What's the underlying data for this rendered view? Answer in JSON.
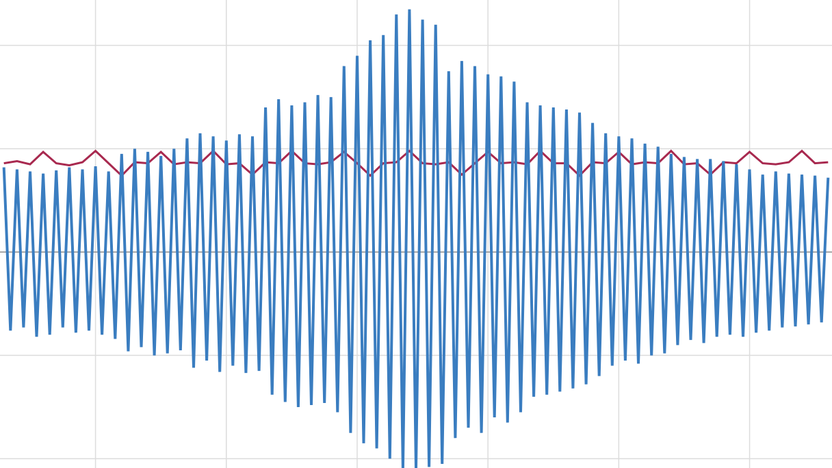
{
  "chart_data": {
    "type": "line",
    "grid": true,
    "xlim": [
      0.27,
      6.63
    ],
    "xticks": [
      1,
      2,
      3,
      4,
      5,
      6
    ],
    "ylim": [
      -2.09,
      2.44
    ],
    "yticks": [
      -2,
      -1,
      0,
      1,
      2
    ],
    "series": [
      {
        "color": "#a8294f",
        "x": [
          0.3,
          0.4,
          0.5,
          0.6,
          0.7,
          0.8,
          0.9,
          1.0,
          1.1,
          1.2,
          1.3,
          1.4,
          1.5,
          1.6,
          1.7,
          1.8,
          1.9,
          2.0,
          2.1,
          2.2,
          2.3,
          2.4,
          2.5,
          2.6,
          2.7,
          2.8,
          2.9,
          3.0,
          3.1,
          3.2,
          3.3,
          3.4,
          3.5,
          3.6,
          3.7,
          3.8,
          3.9,
          4.0,
          4.1,
          4.2,
          4.3,
          4.4,
          4.5,
          4.6,
          4.7,
          4.8,
          4.9,
          5.0,
          5.1,
          5.2,
          5.3,
          5.4,
          5.5,
          5.6,
          5.7,
          5.8,
          5.9,
          6.0,
          6.1,
          6.2,
          6.3,
          6.4,
          6.5,
          6.6
        ],
        "values": [
          0.86,
          0.88,
          0.85,
          0.97,
          0.86,
          0.84,
          0.87,
          0.98,
          0.86,
          0.74,
          0.87,
          0.86,
          0.97,
          0.85,
          0.87,
          0.86,
          0.98,
          0.85,
          0.86,
          0.75,
          0.87,
          0.86,
          0.98,
          0.86,
          0.85,
          0.87,
          0.97,
          0.86,
          0.74,
          0.86,
          0.87,
          0.98,
          0.86,
          0.85,
          0.87,
          0.75,
          0.86,
          0.97,
          0.86,
          0.87,
          0.85,
          0.98,
          0.86,
          0.86,
          0.74,
          0.87,
          0.86,
          0.97,
          0.85,
          0.87,
          0.86,
          0.98,
          0.85,
          0.86,
          0.75,
          0.87,
          0.86,
          0.97,
          0.86,
          0.85,
          0.87,
          0.98,
          0.86,
          0.87
        ]
      },
      {
        "color": "#3a7dc0",
        "x": [
          0.3,
          0.35,
          0.4,
          0.45,
          0.5,
          0.55,
          0.6,
          0.65,
          0.7,
          0.75,
          0.8,
          0.85,
          0.9,
          0.95,
          1.0,
          1.05,
          1.1,
          1.15,
          1.2,
          1.25,
          1.3,
          1.35,
          1.4,
          1.45,
          1.5,
          1.55,
          1.6,
          1.65,
          1.7,
          1.75,
          1.8,
          1.85,
          1.9,
          1.95,
          2.0,
          2.05,
          2.1,
          2.15,
          2.2,
          2.25,
          2.3,
          2.35,
          2.4,
          2.45,
          2.5,
          2.55,
          2.6,
          2.65,
          2.7,
          2.75,
          2.8,
          2.85,
          2.9,
          2.95,
          3.0,
          3.05,
          3.1,
          3.15,
          3.2,
          3.25,
          3.3,
          3.35,
          3.4,
          3.45,
          3.5,
          3.55,
          3.6,
          3.65,
          3.7,
          3.75,
          3.8,
          3.85,
          3.9,
          3.95,
          4.0,
          4.05,
          4.1,
          4.15,
          4.2,
          4.25,
          4.3,
          4.35,
          4.4,
          4.45,
          4.5,
          4.55,
          4.6,
          4.65,
          4.7,
          4.75,
          4.8,
          4.85,
          4.9,
          4.95,
          5.0,
          5.05,
          5.1,
          5.15,
          5.2,
          5.25,
          5.3,
          5.35,
          5.4,
          5.45,
          5.5,
          5.55,
          5.6,
          5.65,
          5.7,
          5.75,
          5.8,
          5.85,
          5.9,
          5.95,
          6.0,
          6.05,
          6.1,
          6.15,
          6.2,
          6.25,
          6.3,
          6.35,
          6.4,
          6.45,
          6.5,
          6.55,
          6.6
        ],
        "values": [
          0.82,
          -0.76,
          0.8,
          -0.73,
          0.78,
          -0.82,
          0.76,
          -0.8,
          0.79,
          -0.73,
          0.82,
          -0.78,
          0.8,
          -0.76,
          0.83,
          -0.8,
          0.78,
          -0.84,
          0.95,
          -0.96,
          1.0,
          -0.92,
          0.97,
          -1.0,
          0.93,
          -0.98,
          1.0,
          -0.95,
          1.1,
          -1.12,
          1.15,
          -1.05,
          1.12,
          -1.16,
          1.08,
          -1.1,
          1.14,
          -1.17,
          1.12,
          -1.15,
          1.4,
          -1.38,
          1.48,
          -1.45,
          1.42,
          -1.5,
          1.45,
          -1.48,
          1.52,
          -1.46,
          1.5,
          -1.55,
          1.8,
          -1.75,
          1.9,
          -1.85,
          2.05,
          -1.9,
          2.1,
          -2.0,
          2.3,
          -2.1,
          2.35,
          -2.1,
          2.25,
          -2.08,
          2.2,
          -2.05,
          1.75,
          -1.8,
          1.85,
          -1.7,
          1.8,
          -1.75,
          1.72,
          -1.6,
          1.7,
          -1.65,
          1.65,
          -1.55,
          1.45,
          -1.4,
          1.42,
          -1.38,
          1.4,
          -1.35,
          1.38,
          -1.32,
          1.35,
          -1.28,
          1.25,
          -1.2,
          1.15,
          -1.1,
          1.12,
          -1.05,
          1.1,
          -1.08,
          1.05,
          -1.0,
          1.02,
          -0.98,
          0.95,
          -0.9,
          0.92,
          -0.85,
          0.9,
          -0.88,
          0.9,
          -0.82,
          0.88,
          -0.8,
          0.85,
          -0.82,
          0.8,
          -0.78,
          0.75,
          -0.76,
          0.78,
          -0.73,
          0.76,
          -0.72,
          0.75,
          -0.7,
          0.74,
          -0.68,
          0.72
        ]
      }
    ]
  }
}
